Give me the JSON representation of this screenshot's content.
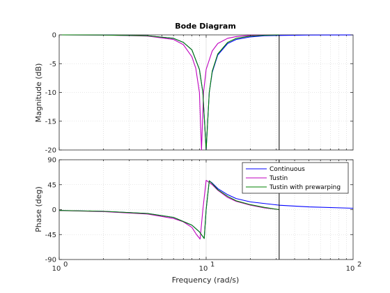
{
  "chart_data": {
    "type": "line",
    "title": "Bode Diagram",
    "xlabel": "Frequency  (rad/s)",
    "xscale": "log",
    "xlim": [
      1,
      100
    ],
    "x_ticks": [
      {
        "value": 1,
        "base": "10",
        "exp": "0"
      },
      {
        "value": 10,
        "base": "10",
        "exp": "1"
      },
      {
        "value": 100,
        "base": "10",
        "exp": "2"
      }
    ],
    "grid": true,
    "legend_position": "top-right",
    "vertical_marker_x": 31.4,
    "series_colors": [
      "#0000ff",
      "#bf00bf",
      "#008000"
    ],
    "series_names": [
      "Continuous",
      "Tustin",
      "Tustin with prewarping"
    ],
    "magnitude": {
      "ylabel": "Magnitude (dB)",
      "ylim": [
        -20,
        0
      ],
      "yticks": [
        0,
        -5,
        -10,
        -15,
        -20
      ],
      "series": [
        {
          "name": "Continuous",
          "x": [
            1,
            2,
            4,
            6,
            7,
            8,
            9,
            9.5,
            10,
            10.5,
            11,
            12,
            14,
            16,
            20,
            25,
            31.4,
            50,
            100
          ],
          "y": [
            0,
            -0.02,
            -0.15,
            -0.6,
            -1.3,
            -2.6,
            -6.0,
            -10.0,
            -20.0,
            -10.0,
            -6.5,
            -3.5,
            -1.5,
            -0.8,
            -0.35,
            -0.15,
            -0.1,
            -0.03,
            -0.01
          ]
        },
        {
          "name": "Tustin",
          "x": [
            1,
            2,
            4,
            6,
            7,
            8,
            8.5,
            9,
            9.3,
            9.6,
            10,
            11,
            12,
            14,
            16,
            20,
            25,
            31.4
          ],
          "y": [
            0,
            -0.03,
            -0.2,
            -0.8,
            -1.7,
            -3.8,
            -5.8,
            -10.0,
            -20.0,
            -10.0,
            -6.0,
            -2.8,
            -1.5,
            -0.6,
            -0.3,
            -0.08,
            -0.02,
            0
          ]
        },
        {
          "name": "Tustin with prewarping",
          "x": [
            1,
            2,
            4,
            6,
            7,
            8,
            9,
            9.5,
            10,
            10.5,
            11,
            12,
            14,
            16,
            20,
            25,
            31.4
          ],
          "y": [
            0,
            -0.02,
            -0.15,
            -0.6,
            -1.3,
            -2.6,
            -6.0,
            -10.0,
            -20.0,
            -10.0,
            -6.3,
            -3.3,
            -1.3,
            -0.6,
            -0.2,
            -0.05,
            0
          ]
        }
      ]
    },
    "phase": {
      "ylabel": "Phase (deg)",
      "ylim": [
        -90,
        90
      ],
      "yticks": [
        90,
        45,
        0,
        -45,
        -90
      ],
      "series": [
        {
          "name": "Continuous",
          "x": [
            1,
            2,
            4,
            6,
            8,
            9,
            9.7,
            10,
            10.5,
            11,
            12,
            14,
            16,
            20,
            25,
            31.4,
            50,
            100
          ],
          "y": [
            -1.5,
            -3,
            -7,
            -14,
            -28,
            -40,
            -52,
            0,
            52,
            48,
            38,
            27,
            20,
            14,
            11,
            8,
            5,
            2.5
          ]
        },
        {
          "name": "Tustin",
          "x": [
            1,
            2,
            4,
            6,
            7,
            8,
            8.6,
            9.1,
            9.5,
            10,
            11,
            12,
            14,
            16,
            20,
            25,
            31.4
          ],
          "y": [
            -1.6,
            -3.5,
            -8,
            -16,
            -22,
            -32,
            -45,
            -53,
            0,
            53,
            45,
            35,
            22,
            15,
            8,
            3,
            0
          ]
        },
        {
          "name": "Tustin with prewarping",
          "x": [
            1,
            2,
            4,
            6,
            8,
            9,
            9.7,
            10,
            10.5,
            11,
            12,
            14,
            16,
            20,
            25,
            31.4
          ],
          "y": [
            -1.5,
            -3,
            -7,
            -14,
            -28,
            -40,
            -52,
            0,
            52,
            47,
            36,
            24,
            16,
            9,
            4,
            0
          ]
        }
      ]
    }
  }
}
